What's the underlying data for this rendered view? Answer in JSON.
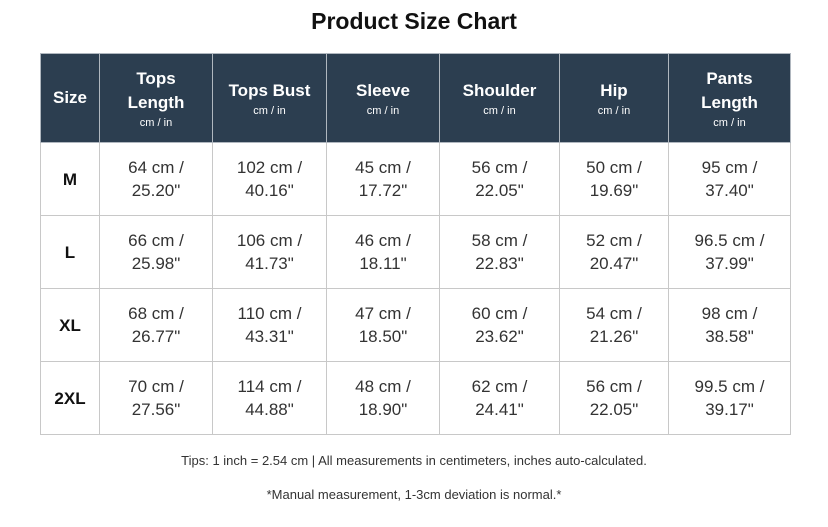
{
  "title": "Product Size Chart",
  "table": {
    "headers": [
      {
        "name": "Size"
      },
      {
        "name": "Tops Length",
        "unit": "cm / in"
      },
      {
        "name": "Tops Bust",
        "unit": "cm / in"
      },
      {
        "name": "Sleeve",
        "unit": "cm / in"
      },
      {
        "name": "Shoulder",
        "unit": "cm / in"
      },
      {
        "name": "Hip",
        "unit": "cm / in"
      },
      {
        "name": "Pants Length",
        "unit": "cm / in"
      }
    ],
    "rows": [
      [
        "M",
        "64 cm / 25.20\"",
        "102 cm / 40.16\"",
        "45 cm / 17.72\"",
        "56 cm / 22.05\"",
        "50 cm / 19.69\"",
        "95 cm / 37.40\""
      ],
      [
        "L",
        "66 cm / 25.98\"",
        "106 cm / 41.73\"",
        "46 cm / 18.11\"",
        "58 cm / 22.83\"",
        "52 cm / 20.47\"",
        "96.5 cm / 37.99\""
      ],
      [
        "XL",
        "68 cm / 26.77\"",
        "110 cm / 43.31\"",
        "47 cm / 18.50\"",
        "60 cm / 23.62\"",
        "54 cm / 21.26\"",
        "98 cm / 38.58\""
      ],
      [
        "2XL",
        "70 cm / 27.56\"",
        "114 cm / 44.88\"",
        "48 cm / 18.90\"",
        "62 cm / 24.41\"",
        "56 cm / 22.05\"",
        "99.5 cm / 39.17\""
      ]
    ]
  },
  "tips": "Tips: 1 inch = 2.54 cm | All measurements in centimeters, inches auto-calculated.",
  "note": "*Manual measurement, 1-3cm deviation is normal.*"
}
